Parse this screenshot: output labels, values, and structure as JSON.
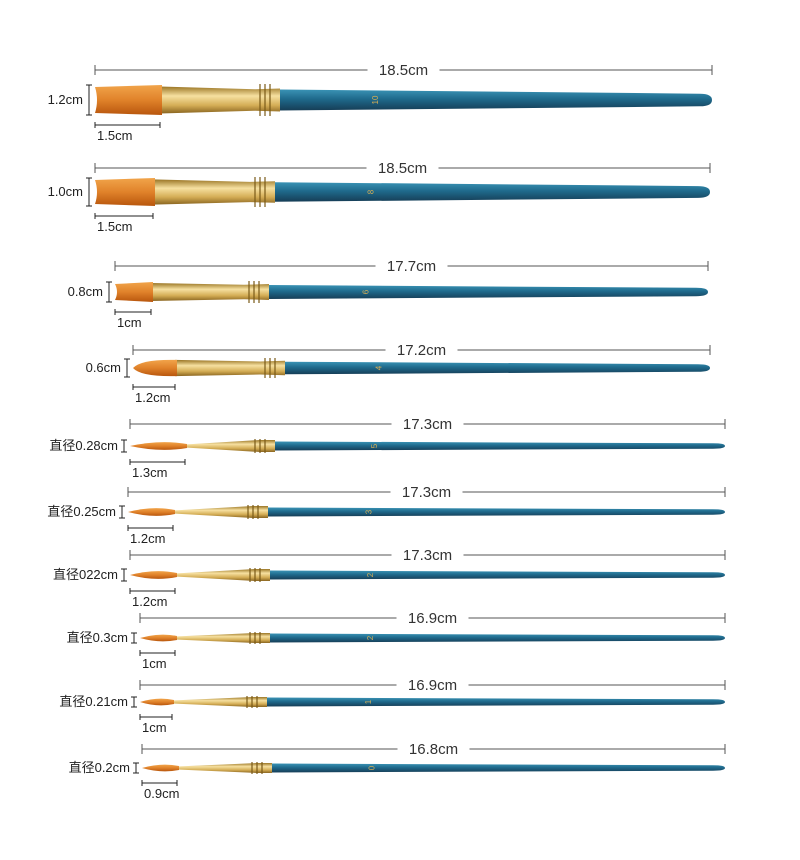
{
  "colors": {
    "handle_dark": "#163d56",
    "handle_mid": "#1f6a8c",
    "handle_light": "#3a93b5",
    "ferrule_dark": "#9a7524",
    "ferrule_mid": "#d4ad55",
    "ferrule_light": "#f6e0a0",
    "bristle_dark": "#b8560d",
    "bristle_light": "#f1a44a",
    "dimension_line": "#555555"
  },
  "brushes": [
    {
      "type": "flat",
      "length_label": "18.5cm",
      "side_label": "1.2cm",
      "width_label": "1.5cm",
      "handle_number": "10"
    },
    {
      "type": "flat",
      "length_label": "18.5cm",
      "side_label": "1.0cm",
      "width_label": "1.5cm",
      "handle_number": "8"
    },
    {
      "type": "flat",
      "length_label": "17.7cm",
      "side_label": "0.8cm",
      "width_label": "1cm",
      "handle_number": "6"
    },
    {
      "type": "oval",
      "length_label": "17.2cm",
      "side_label": "0.6cm",
      "width_label": "1.2cm",
      "handle_number": "4"
    },
    {
      "type": "round",
      "length_label": "17.3cm",
      "side_label": "直径0.28cm",
      "width_label": "1.3cm",
      "handle_number": "5"
    },
    {
      "type": "round",
      "length_label": "17.3cm",
      "side_label": "直径0.25cm",
      "width_label": "1.2cm",
      "handle_number": "3"
    },
    {
      "type": "round",
      "length_label": "17.3cm",
      "side_label": "直径022cm",
      "width_label": "1.2cm",
      "handle_number": "2"
    },
    {
      "type": "round",
      "length_label": "16.9cm",
      "side_label": "直径0.3cm",
      "width_label": "1cm",
      "handle_number": "2"
    },
    {
      "type": "round",
      "length_label": "16.9cm",
      "side_label": "直径0.21cm",
      "width_label": "1cm",
      "handle_number": "1"
    },
    {
      "type": "round",
      "length_label": "16.8cm",
      "side_label": "直径0.2cm",
      "width_label": "0.9cm",
      "handle_number": "0"
    }
  ]
}
